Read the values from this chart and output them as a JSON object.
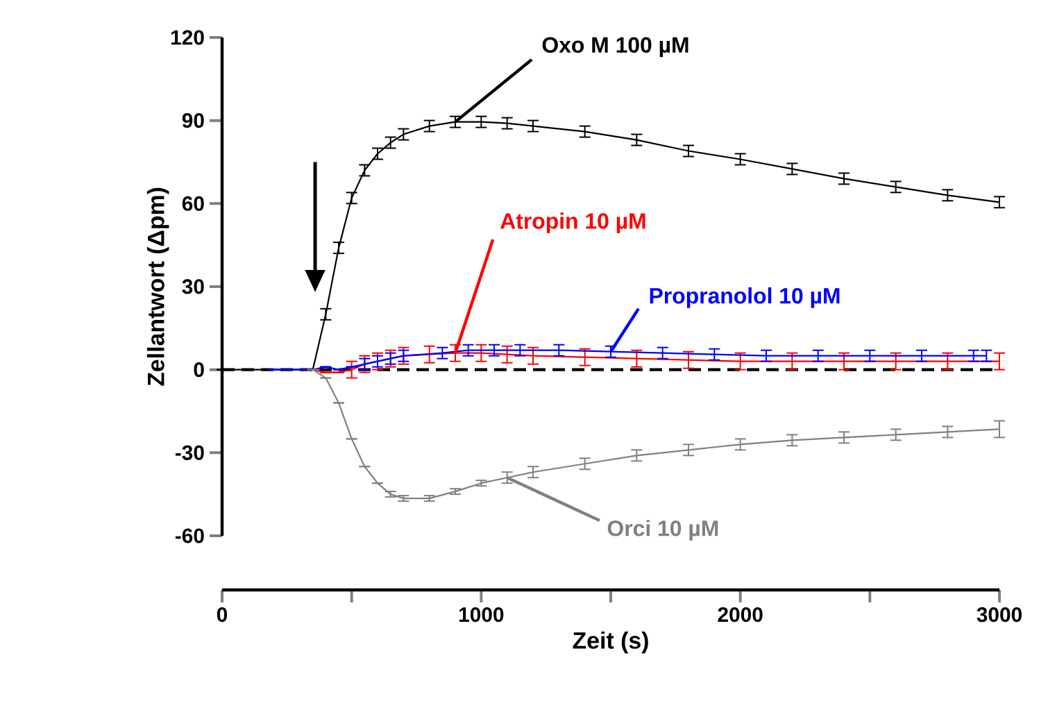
{
  "chart_data": {
    "type": "line",
    "xlabel": "Zeit (s)",
    "ylabel": "Zellantwort (Δpm)",
    "x": [
      0,
      100,
      200,
      300,
      350,
      400,
      450,
      500,
      550,
      600,
      650,
      700,
      800,
      900,
      1000,
      1100,
      1200,
      1400,
      1600,
      1800,
      2000,
      2200,
      2400,
      2600,
      2800,
      3000
    ],
    "series": [
      {
        "name": "Oxo M 100 µM",
        "color": "#000000",
        "values": [
          0,
          0,
          0,
          0,
          0,
          20,
          44,
          62,
          72,
          78,
          82,
          85,
          88,
          89.5,
          89.5,
          89,
          88,
          86,
          83,
          79,
          76,
          72.5,
          69,
          66,
          63,
          60.5
        ],
        "errors": [
          null,
          null,
          null,
          null,
          null,
          2,
          2,
          2,
          2,
          2,
          2,
          2,
          2,
          2,
          2,
          2,
          2,
          2,
          2,
          2,
          2,
          2,
          2,
          2,
          2,
          2
        ]
      },
      {
        "name": "Atropin 10 µM",
        "color": "#ff0000",
        "values": [
          null,
          null,
          null,
          0,
          0,
          -1,
          -1,
          0,
          2,
          3,
          4,
          5,
          5.5,
          6,
          6,
          5.5,
          5,
          4.5,
          4,
          3.5,
          3,
          3,
          3,
          3,
          3,
          3
        ],
        "errors": [
          null,
          null,
          null,
          null,
          null,
          null,
          null,
          3,
          3,
          3,
          3,
          3,
          3,
          3,
          3,
          3,
          3,
          3,
          3,
          3,
          3,
          3,
          3,
          3,
          3,
          3
        ]
      },
      {
        "name": "Propranolol 10 µM",
        "color": "#0000ff",
        "x": [
          200,
          300,
          350,
          400,
          450,
          500,
          550,
          600,
          650,
          700,
          850,
          950,
          1050,
          1150,
          1300,
          1500,
          1700,
          1900,
          2100,
          2300,
          2500,
          2700,
          2900,
          2950
        ],
        "values": [
          0,
          0,
          0,
          1,
          0,
          1,
          2,
          3,
          4,
          5,
          6,
          7,
          7,
          7,
          7,
          6.5,
          6,
          5.5,
          5,
          5,
          5,
          5,
          5,
          5
        ],
        "errors": [
          null,
          null,
          null,
          null,
          null,
          null,
          2,
          2,
          2,
          2,
          2,
          2,
          2,
          2,
          2,
          2,
          2,
          2,
          2,
          2,
          2,
          2,
          2,
          2
        ]
      },
      {
        "name": "Orci 10 µM",
        "color": "#808080",
        "values": [
          null,
          null,
          null,
          null,
          0,
          -3,
          -12,
          -25,
          -35,
          -41,
          -45,
          -46.5,
          -46.5,
          -44,
          -41,
          -39,
          -37,
          -34,
          -31,
          -29,
          -27,
          -25.5,
          -24.5,
          -23.5,
          -22.5,
          -21.5
        ],
        "errors": [
          null,
          null,
          null,
          null,
          null,
          null,
          null,
          null,
          null,
          null,
          1,
          1,
          1,
          1,
          1,
          2,
          2,
          2,
          2,
          2,
          2,
          2,
          2,
          2,
          2,
          3
        ]
      }
    ],
    "xlim": [
      0,
      3000
    ],
    "ylim": [
      -60,
      120
    ],
    "xticks": [
      0,
      {
        "value": 500,
        "label": null
      },
      1000,
      {
        "value": 1500,
        "label": null
      },
      2000,
      {
        "value": 2500,
        "label": null
      },
      3000
    ],
    "yticks": [
      -60,
      -30,
      0,
      30,
      60,
      90,
      120
    ],
    "ref_lines": [
      {
        "axis": "y",
        "value": 0,
        "color": "#000000",
        "line_style": "dashed"
      }
    ],
    "grid": false,
    "line_style": "solid",
    "marker": "none"
  }
}
